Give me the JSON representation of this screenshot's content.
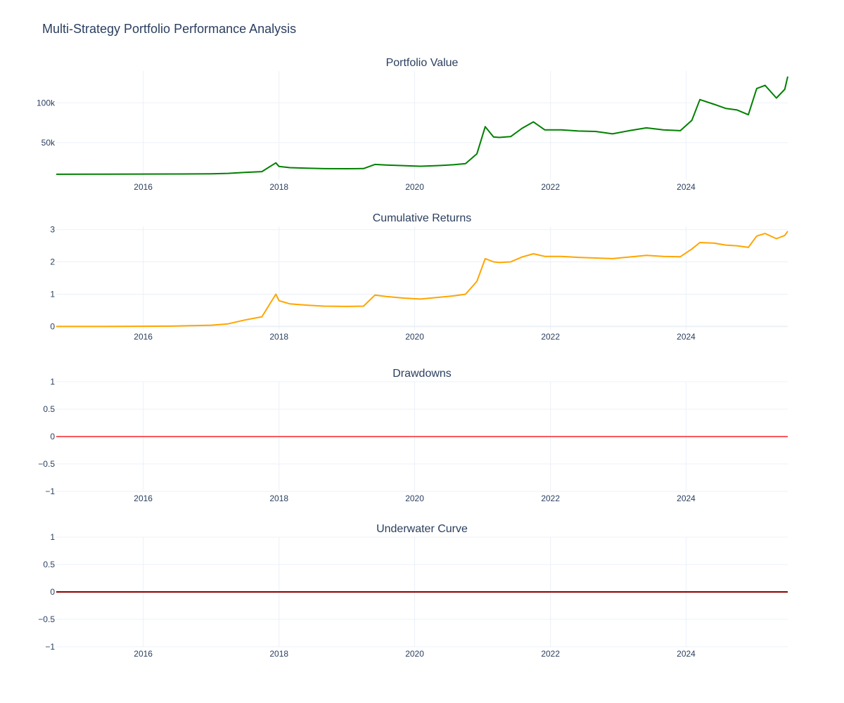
{
  "title": "Multi-Strategy Portfolio Performance Analysis",
  "chart_data": [
    {
      "type": "line",
      "title": "Portfolio Value",
      "xlim": [
        "2014-09-20",
        "2025-07-01"
      ],
      "ylim": [
        3000,
        140000
      ],
      "xticks": [
        {
          "value": "2016-01-01",
          "label": "2016"
        },
        {
          "value": "2018-01-01",
          "label": "2018"
        },
        {
          "value": "2020-01-01",
          "label": "2020"
        },
        {
          "value": "2022-01-01",
          "label": "2022"
        },
        {
          "value": "2024-01-01",
          "label": "2024"
        }
      ],
      "yticks": [
        {
          "value": 50000,
          "label": "50k"
        },
        {
          "value": 100000,
          "label": "100k"
        }
      ],
      "color": "#008000",
      "series": [
        {
          "x": [
            "2014-09-20",
            "2015-06-01",
            "2016-06-01",
            "2017-01-01",
            "2017-04-01",
            "2017-07-01",
            "2017-10-01",
            "2017-12-15",
            "2018-01-01",
            "2018-03-01",
            "2018-06-01",
            "2018-09-01",
            "2019-01-01",
            "2019-04-01",
            "2019-06-01",
            "2019-08-01",
            "2019-11-01",
            "2020-02-01",
            "2020-05-01",
            "2020-08-01",
            "2020-10-01",
            "2020-12-01",
            "2021-01-15",
            "2021-03-01",
            "2021-04-01",
            "2021-06-01",
            "2021-08-01",
            "2021-10-01",
            "2021-12-01",
            "2022-03-01",
            "2022-06-01",
            "2022-09-01",
            "2022-12-01",
            "2023-03-01",
            "2023-06-01",
            "2023-09-01",
            "2023-12-01",
            "2024-02-01",
            "2024-03-15",
            "2024-06-01",
            "2024-08-01",
            "2024-10-01",
            "2024-12-01",
            "2025-01-15",
            "2025-03-01",
            "2025-05-01",
            "2025-06-15",
            "2025-07-01"
          ],
          "y": [
            10200,
            10300,
            10500,
            10800,
            11300,
            12500,
            13500,
            24500,
            20000,
            18500,
            17800,
            17200,
            17100,
            17300,
            22500,
            21800,
            21000,
            20200,
            21000,
            22200,
            23500,
            36000,
            70000,
            57000,
            56500,
            57500,
            68000,
            76000,
            66000,
            66000,
            64500,
            64000,
            61000,
            65000,
            68500,
            66000,
            65000,
            78000,
            104000,
            98000,
            93000,
            91000,
            85000,
            118000,
            122000,
            106000,
            117000,
            133000
          ]
        }
      ]
    },
    {
      "type": "line",
      "title": "Cumulative Returns",
      "xlim": [
        "2014-09-20",
        "2025-07-01"
      ],
      "ylim": [
        -0.1,
        3.1
      ],
      "xticks": [
        {
          "value": "2016-01-01",
          "label": "2016"
        },
        {
          "value": "2018-01-01",
          "label": "2018"
        },
        {
          "value": "2020-01-01",
          "label": "2020"
        },
        {
          "value": "2022-01-01",
          "label": "2022"
        },
        {
          "value": "2024-01-01",
          "label": "2024"
        }
      ],
      "yticks": [
        {
          "value": 0,
          "label": "0"
        },
        {
          "value": 1,
          "label": "1"
        },
        {
          "value": 2,
          "label": "2"
        },
        {
          "value": 3,
          "label": "3"
        }
      ],
      "color": "#ffa500",
      "series": [
        {
          "x": [
            "2014-09-20",
            "2015-06-01",
            "2016-06-01",
            "2017-01-01",
            "2017-04-01",
            "2017-07-01",
            "2017-10-01",
            "2017-12-15",
            "2018-01-01",
            "2018-03-01",
            "2018-06-01",
            "2018-09-01",
            "2019-01-01",
            "2019-04-01",
            "2019-06-01",
            "2019-08-01",
            "2019-11-01",
            "2020-02-01",
            "2020-05-01",
            "2020-08-01",
            "2020-10-01",
            "2020-12-01",
            "2021-01-15",
            "2021-03-01",
            "2021-04-01",
            "2021-06-01",
            "2021-08-01",
            "2021-10-01",
            "2021-12-01",
            "2022-03-01",
            "2022-06-01",
            "2022-09-01",
            "2022-12-01",
            "2023-03-01",
            "2023-06-01",
            "2023-09-01",
            "2023-12-01",
            "2024-02-01",
            "2024-03-15",
            "2024-06-01",
            "2024-08-01",
            "2024-10-01",
            "2024-12-01",
            "2025-01-15",
            "2025-03-01",
            "2025-05-01",
            "2025-06-15",
            "2025-07-01"
          ],
          "y": [
            0,
            0,
            0.01,
            0.04,
            0.08,
            0.2,
            0.3,
            1.0,
            0.8,
            0.7,
            0.66,
            0.63,
            0.62,
            0.63,
            0.97,
            0.93,
            0.88,
            0.85,
            0.9,
            0.95,
            1.0,
            1.4,
            2.1,
            2.0,
            1.98,
            2.0,
            2.15,
            2.25,
            2.17,
            2.17,
            2.14,
            2.12,
            2.1,
            2.15,
            2.2,
            2.17,
            2.16,
            2.4,
            2.6,
            2.58,
            2.52,
            2.5,
            2.45,
            2.8,
            2.88,
            2.72,
            2.82,
            2.95
          ]
        }
      ]
    },
    {
      "type": "line",
      "title": "Drawdowns",
      "xlim": [
        "2014-09-20",
        "2025-07-01"
      ],
      "ylim": [
        -1,
        1
      ],
      "xticks": [
        {
          "value": "2016-01-01",
          "label": "2016"
        },
        {
          "value": "2018-01-01",
          "label": "2018"
        },
        {
          "value": "2020-01-01",
          "label": "2020"
        },
        {
          "value": "2022-01-01",
          "label": "2022"
        },
        {
          "value": "2024-01-01",
          "label": "2024"
        }
      ],
      "yticks": [
        {
          "value": -1,
          "label": "−1"
        },
        {
          "value": -0.5,
          "label": "−0.5"
        },
        {
          "value": 0,
          "label": "0"
        },
        {
          "value": 0.5,
          "label": "0.5"
        },
        {
          "value": 1,
          "label": "1"
        }
      ],
      "color": "#ff0000",
      "series": [
        {
          "x": [
            "2014-09-20",
            "2025-07-01"
          ],
          "y": [
            0,
            0
          ]
        }
      ]
    },
    {
      "type": "area",
      "title": "Underwater Curve",
      "xlim": [
        "2014-09-20",
        "2025-07-01"
      ],
      "ylim": [
        -1,
        1
      ],
      "xticks": [
        {
          "value": "2016-01-01",
          "label": "2016"
        },
        {
          "value": "2018-01-01",
          "label": "2018"
        },
        {
          "value": "2020-01-01",
          "label": "2020"
        },
        {
          "value": "2022-01-01",
          "label": "2022"
        },
        {
          "value": "2024-01-01",
          "label": "2024"
        }
      ],
      "yticks": [
        {
          "value": -1,
          "label": "−1"
        },
        {
          "value": -0.5,
          "label": "−0.5"
        },
        {
          "value": 0,
          "label": "0"
        },
        {
          "value": 0.5,
          "label": "0.5"
        },
        {
          "value": 1,
          "label": "1"
        }
      ],
      "color": "#8b0000",
      "series": [
        {
          "x": [
            "2014-09-20",
            "2025-07-01"
          ],
          "y": [
            0,
            0
          ]
        }
      ]
    }
  ]
}
